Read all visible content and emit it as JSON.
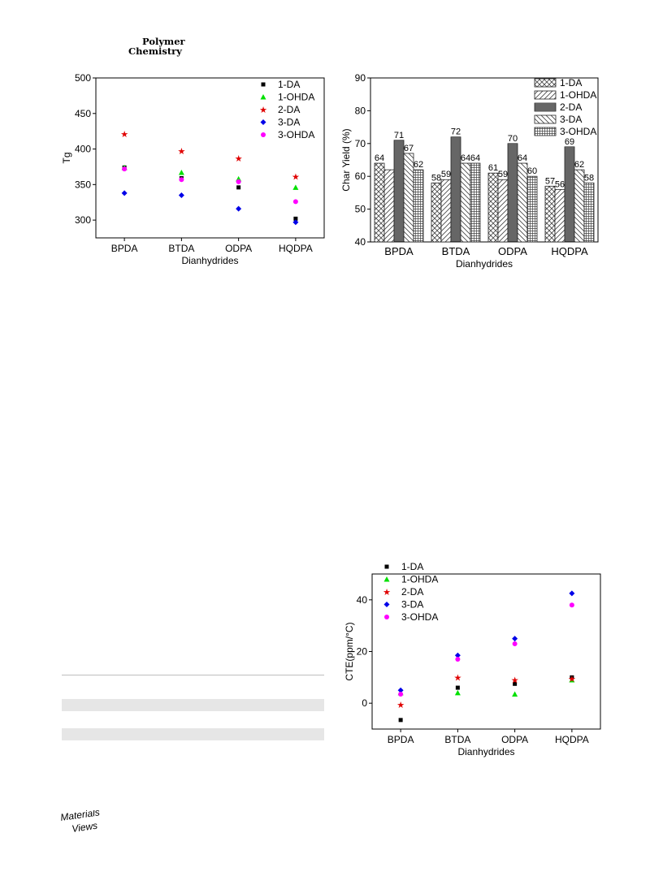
{
  "header": {
    "journal_line1": "Polymer",
    "journal_line2": "Chemistry"
  },
  "figures": {
    "tg": {
      "chart_data": {
        "type": "scatter",
        "xlabel": "Dianhydrides",
        "ylabel": "Tg",
        "categories": [
          "BPDA",
          "BTDA",
          "ODPA",
          "HQDPA"
        ],
        "ylim": [
          275,
          500
        ],
        "yticks": [
          "300",
          "350",
          "400",
          "450",
          "500"
        ],
        "legend_position": "top-right",
        "series": [
          {
            "name": "1-DA",
            "color": "#000000",
            "marker": "square",
            "values": [
              374,
              359,
              346,
              302
            ]
          },
          {
            "name": "1-OHDA",
            "color": "#00e000",
            "marker": "triangle",
            "values": [
              374,
              367,
              358,
              346
            ]
          },
          {
            "name": "2-DA",
            "color": "#e00000",
            "marker": "star",
            "values": [
              421,
              397,
              387,
              361
            ]
          },
          {
            "name": "3-DA",
            "color": "#0000e8",
            "marker": "diamond",
            "values": [
              338,
              335,
              316,
              297
            ]
          },
          {
            "name": "3-OHDA",
            "color": "#ff00ff",
            "marker": "circle",
            "values": [
              372,
              357,
              354,
              326
            ]
          }
        ]
      }
    },
    "char": {
      "chart_data": {
        "type": "bar",
        "xlabel": "Dianhydrides",
        "ylabel": "Char Yield (%)",
        "categories": [
          "BPDA",
          "BTDA",
          "ODPA",
          "HQDPA"
        ],
        "ylim": [
          40,
          90
        ],
        "yticks": [
          "40",
          "50",
          "60",
          "70",
          "80",
          "90"
        ],
        "legend_position": "top-right",
        "series": [
          {
            "name": "1-DA",
            "pattern": "crosshatch",
            "values": [
              64,
              58,
              61,
              57
            ]
          },
          {
            "name": "1-OHDA",
            "pattern": "diag-up",
            "values": [
              62,
              59,
              59,
              56
            ]
          },
          {
            "name": "2-DA",
            "pattern": "dense-horizontal",
            "values": [
              71,
              72,
              70,
              69
            ]
          },
          {
            "name": "3-DA",
            "pattern": "diag-down",
            "values": [
              67,
              64,
              64,
              62
            ]
          },
          {
            "name": "3-OHDA",
            "pattern": "grid",
            "values": [
              62,
              64,
              60,
              58
            ]
          }
        ],
        "bar_labels": [
          [
            "64",
            "",
            "71",
            "67",
            "62"
          ],
          [
            "58",
            "59",
            "72",
            "64",
            "64"
          ],
          [
            "61",
            "59",
            "70",
            "64",
            "60"
          ],
          [
            "57",
            "56",
            "69",
            "62",
            "58"
          ]
        ]
      }
    },
    "cte": {
      "chart_data": {
        "type": "scatter",
        "xlabel": "Dianhydrides",
        "ylabel": "CTE(ppm/°C)",
        "categories": [
          "BPDA",
          "BTDA",
          "ODPA",
          "HQDPA"
        ],
        "ylim": [
          -10,
          50
        ],
        "yticks": [
          "0",
          "20",
          "40"
        ],
        "legend_position": "top-left",
        "series": [
          {
            "name": "1-DA",
            "color": "#000000",
            "marker": "square",
            "values": [
              -6.5,
              6,
              7.5,
              10
            ]
          },
          {
            "name": "1-OHDA",
            "color": "#00e000",
            "marker": "triangle",
            "values": [
              4,
              4,
              3.5,
              9
            ]
          },
          {
            "name": "2-DA",
            "color": "#e00000",
            "marker": "star",
            "values": [
              -0.5,
              10,
              9,
              9.5
            ]
          },
          {
            "name": "3-DA",
            "color": "#0000e8",
            "marker": "diamond",
            "values": [
              5,
              18.5,
              25,
              42.5
            ]
          },
          {
            "name": "3-OHDA",
            "color": "#ff00ff",
            "marker": "circle",
            "values": [
              3.5,
              17,
              23,
              38
            ]
          }
        ]
      }
    }
  },
  "footer": {
    "logo_text": "MaterialsViews"
  }
}
